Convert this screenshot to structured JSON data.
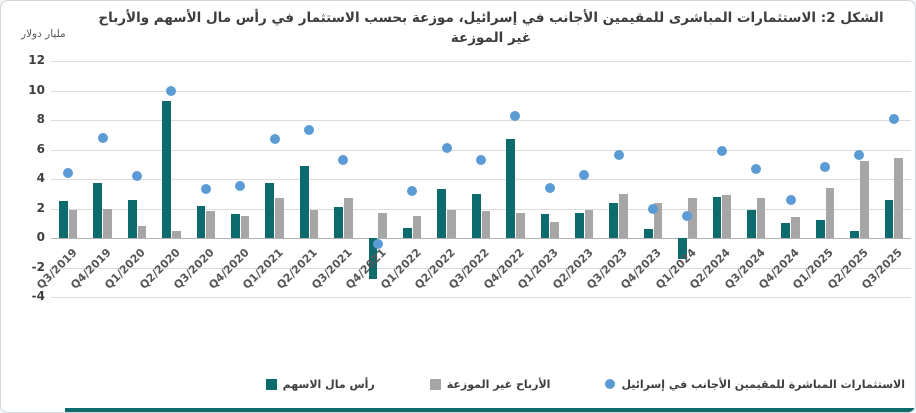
{
  "title": {
    "line1": "الشكل 2: الاستثمارات المباشرى للمقيمين الأجانب في إسرائيل، موزعة بحسب الاستثمار في رأس مال الأسهم والأرباح",
    "line2": "غير الموزعة"
  },
  "y_axis": {
    "unit_label": "مليار دولار",
    "ticks": [
      12,
      10,
      8,
      6,
      4,
      2,
      0,
      -2,
      -4
    ]
  },
  "legend": [
    {
      "label": "رأس مال الاسهم",
      "marker": "square",
      "color": "#0e6b6d"
    },
    {
      "label": "الأرباح غير الموزعة",
      "marker": "square",
      "color": "#a6a6a6"
    },
    {
      "label": "الاستثمارات المباشرة للمقيمين الأجانب في إسرائيل",
      "marker": "circle",
      "color": "#5b9bd5"
    }
  ],
  "chart_data": {
    "type": "bar",
    "overlay": "scatter",
    "categories": [
      "Q3/2019",
      "Q4/2019",
      "Q1/2020",
      "Q2/2020",
      "Q3/2020",
      "Q4/2020",
      "Q1/2021",
      "Q2/2021",
      "Q3/2021",
      "Q4/2021",
      "Q1/2022",
      "Q2/2022",
      "Q3/2022",
      "Q4/2022",
      "Q1/2023",
      "Q2/2023",
      "Q3/2023",
      "Q4/2023",
      "Q1/2024",
      "Q2/2024",
      "Q3/2024",
      "Q4/2024",
      "Q1/2025",
      "Q2/2025",
      "Q3/2025"
    ],
    "series": [
      {
        "name": "رأس مال الاسهم",
        "type": "bar",
        "color": "#0e6b6d",
        "values": [
          2.5,
          3.7,
          2.6,
          9.3,
          2.2,
          1.6,
          3.7,
          4.9,
          2.1,
          -2.8,
          0.7,
          3.3,
          3.0,
          6.7,
          1.6,
          1.7,
          2.4,
          0.6,
          -1.4,
          2.8,
          1.9,
          1.0,
          1.2,
          0.5,
          2.6
        ]
      },
      {
        "name": "الأرباح غير الموزعة",
        "type": "bar",
        "color": "#a6a6a6",
        "values": [
          1.9,
          2.0,
          0.8,
          0.5,
          1.8,
          1.5,
          2.7,
          1.9,
          2.7,
          1.7,
          1.5,
          1.9,
          1.8,
          1.7,
          1.1,
          1.9,
          3.0,
          2.4,
          2.7,
          2.9,
          2.7,
          1.4,
          3.4,
          5.2,
          5.4
        ]
      },
      {
        "name": "الاستثمارات المباشرة للمقيمين الأجانب في إسرائيل",
        "type": "scatter",
        "color": "#5b9bd5",
        "values": [
          4.4,
          6.8,
          4.2,
          10.0,
          3.3,
          3.5,
          6.7,
          7.3,
          5.3,
          -0.4,
          3.2,
          6.1,
          5.3,
          8.3,
          3.4,
          4.3,
          5.6,
          2.0,
          1.5,
          5.9,
          4.7,
          2.6,
          4.8,
          5.6,
          8.1
        ]
      }
    ],
    "title": "الشكل 2: الاستثمارات المباشرى للمقيمين الأجانب في إسرائيل، موزعة بحسب الاستثمار في رأس مال الأسهم والأرباح غير الموزعة",
    "ylabel": "مليار دولار",
    "ylim": [
      -4,
      12
    ],
    "grid": true,
    "legend_position": "bottom"
  },
  "footer": {
    "accent_color": "#0e6b6d"
  }
}
